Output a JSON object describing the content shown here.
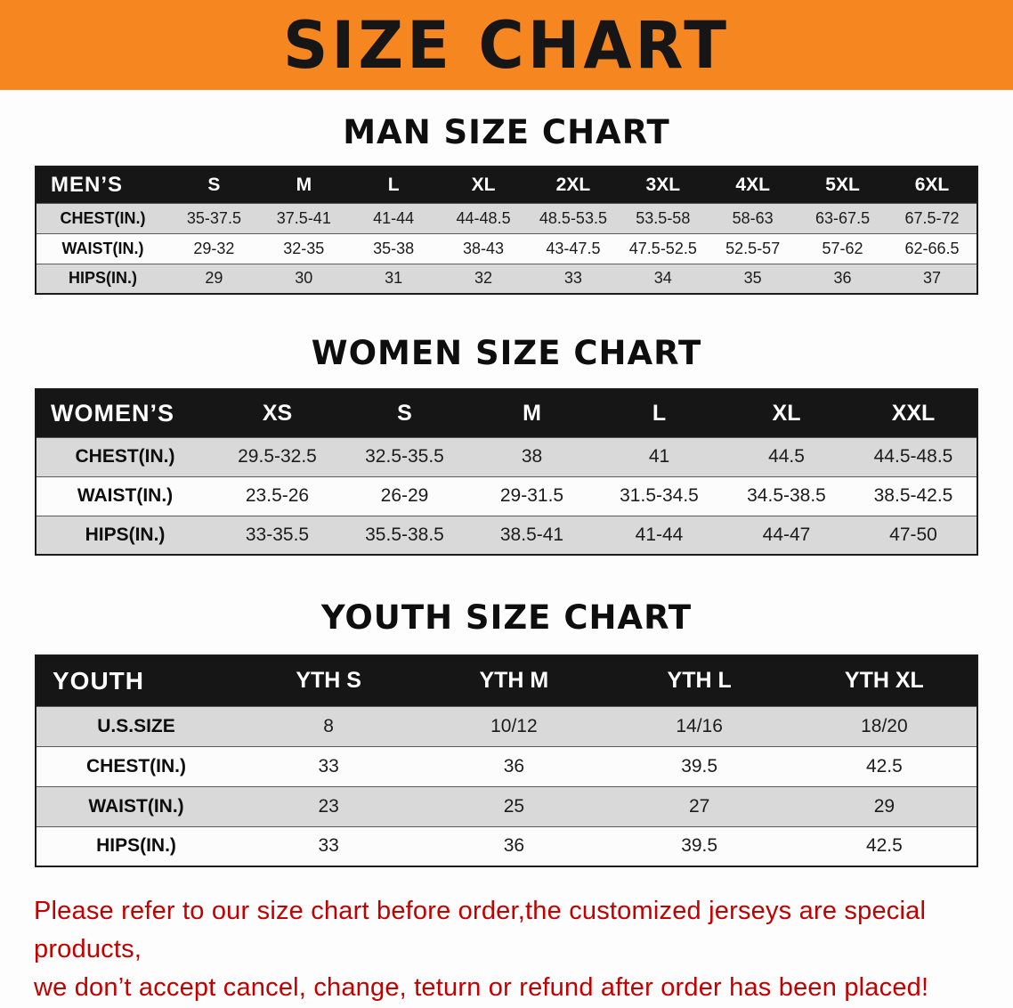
{
  "banner": {
    "title": "SIZE CHART"
  },
  "colors": {
    "banner-bg": "#f6861f",
    "header-bg": "#161616",
    "row-alt": "#d9d9d9",
    "disclaimer": "#c20000"
  },
  "sections": [
    {
      "id": "men",
      "heading": "MAN SIZE CHART",
      "table": {
        "header": [
          "MEN’S",
          "S",
          "M",
          "L",
          "XL",
          "2XL",
          "3XL",
          "4XL",
          "5XL",
          "6XL"
        ],
        "rows": [
          [
            "CHEST(IN.)",
            "35-37.5",
            "37.5-41",
            "41-44",
            "44-48.5",
            "48.5-53.5",
            "53.5-58",
            "58-63",
            "63-67.5",
            "67.5-72"
          ],
          [
            "WAIST(IN.)",
            "29-32",
            "32-35",
            "35-38",
            "38-43",
            "43-47.5",
            "47.5-52.5",
            "52.5-57",
            "57-62",
            "62-66.5"
          ],
          [
            "HIPS(IN.)",
            "29",
            "30",
            "31",
            "32",
            "33",
            "34",
            "35",
            "36",
            "37"
          ]
        ]
      }
    },
    {
      "id": "women",
      "heading": "WOMEN SIZE CHART",
      "table": {
        "header": [
          "WOMEN’S",
          "XS",
          "S",
          "M",
          "L",
          "XL",
          "XXL"
        ],
        "rows": [
          [
            "CHEST(IN.)",
            "29.5-32.5",
            "32.5-35.5",
            "38",
            "41",
            "44.5",
            "44.5-48.5"
          ],
          [
            "WAIST(IN.)",
            "23.5-26",
            "26-29",
            "29-31.5",
            "31.5-34.5",
            "34.5-38.5",
            "38.5-42.5"
          ],
          [
            "HIPS(IN.)",
            "33-35.5",
            "35.5-38.5",
            "38.5-41",
            "41-44",
            "44-47",
            "47-50"
          ]
        ]
      }
    },
    {
      "id": "youth",
      "heading": "YOUTH SIZE CHART",
      "table": {
        "header": [
          "YOUTH",
          "YTH S",
          "YTH M",
          "YTH L",
          "YTH XL"
        ],
        "rows": [
          [
            "U.S.SIZE",
            "8",
            "10/12",
            "14/16",
            "18/20"
          ],
          [
            "CHEST(IN.)",
            "33",
            "36",
            "39.5",
            "42.5"
          ],
          [
            "WAIST(IN.)",
            "23",
            "25",
            "27",
            "29"
          ],
          [
            "HIPS(IN.)",
            "33",
            "36",
            "39.5",
            "42.5"
          ]
        ]
      }
    }
  ],
  "disclaimer": {
    "line1": "Please refer to our size chart before order,the customized jerseys are special products,",
    "line2": "we don’t accept cancel, change, teturn or refund after order has been placed!"
  }
}
